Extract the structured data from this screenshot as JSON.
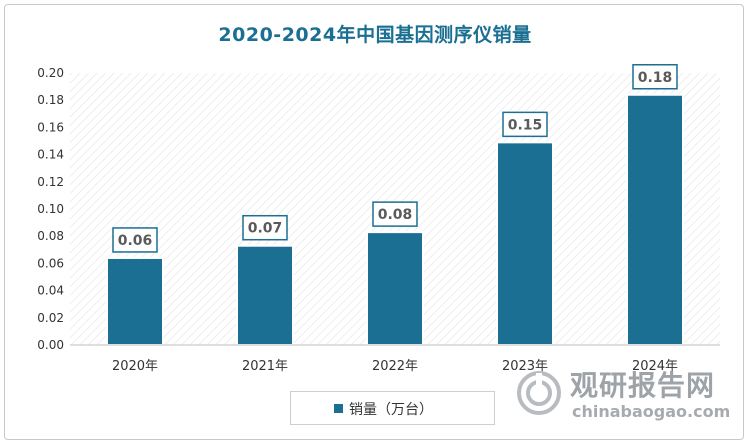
{
  "chart_data": {
    "type": "bar",
    "title": "2020-2024年中国基因测序仪销量",
    "categories": [
      "2020年",
      "2021年",
      "2022年",
      "2023年",
      "2024年"
    ],
    "series": [
      {
        "name": "销量（万台）",
        "values": [
          0.064,
          0.073,
          0.083,
          0.149,
          0.184
        ],
        "labels": [
          "0.06",
          "0.07",
          "0.08",
          "0.15",
          "0.18"
        ]
      }
    ],
    "ylim": [
      0,
      0.2
    ],
    "yticks": [
      "0.00",
      "0.02",
      "0.04",
      "0.06",
      "0.08",
      "0.10",
      "0.12",
      "0.14",
      "0.16",
      "0.18",
      "0.20"
    ],
    "xlabel": "",
    "ylabel": "",
    "grid": false,
    "legend_position": "bottom",
    "bar_color": "#1b6f93",
    "label_border_color": "#1b6f93"
  },
  "watermark": {
    "cn": "观研报告网",
    "en": "chinabaogao.com"
  }
}
